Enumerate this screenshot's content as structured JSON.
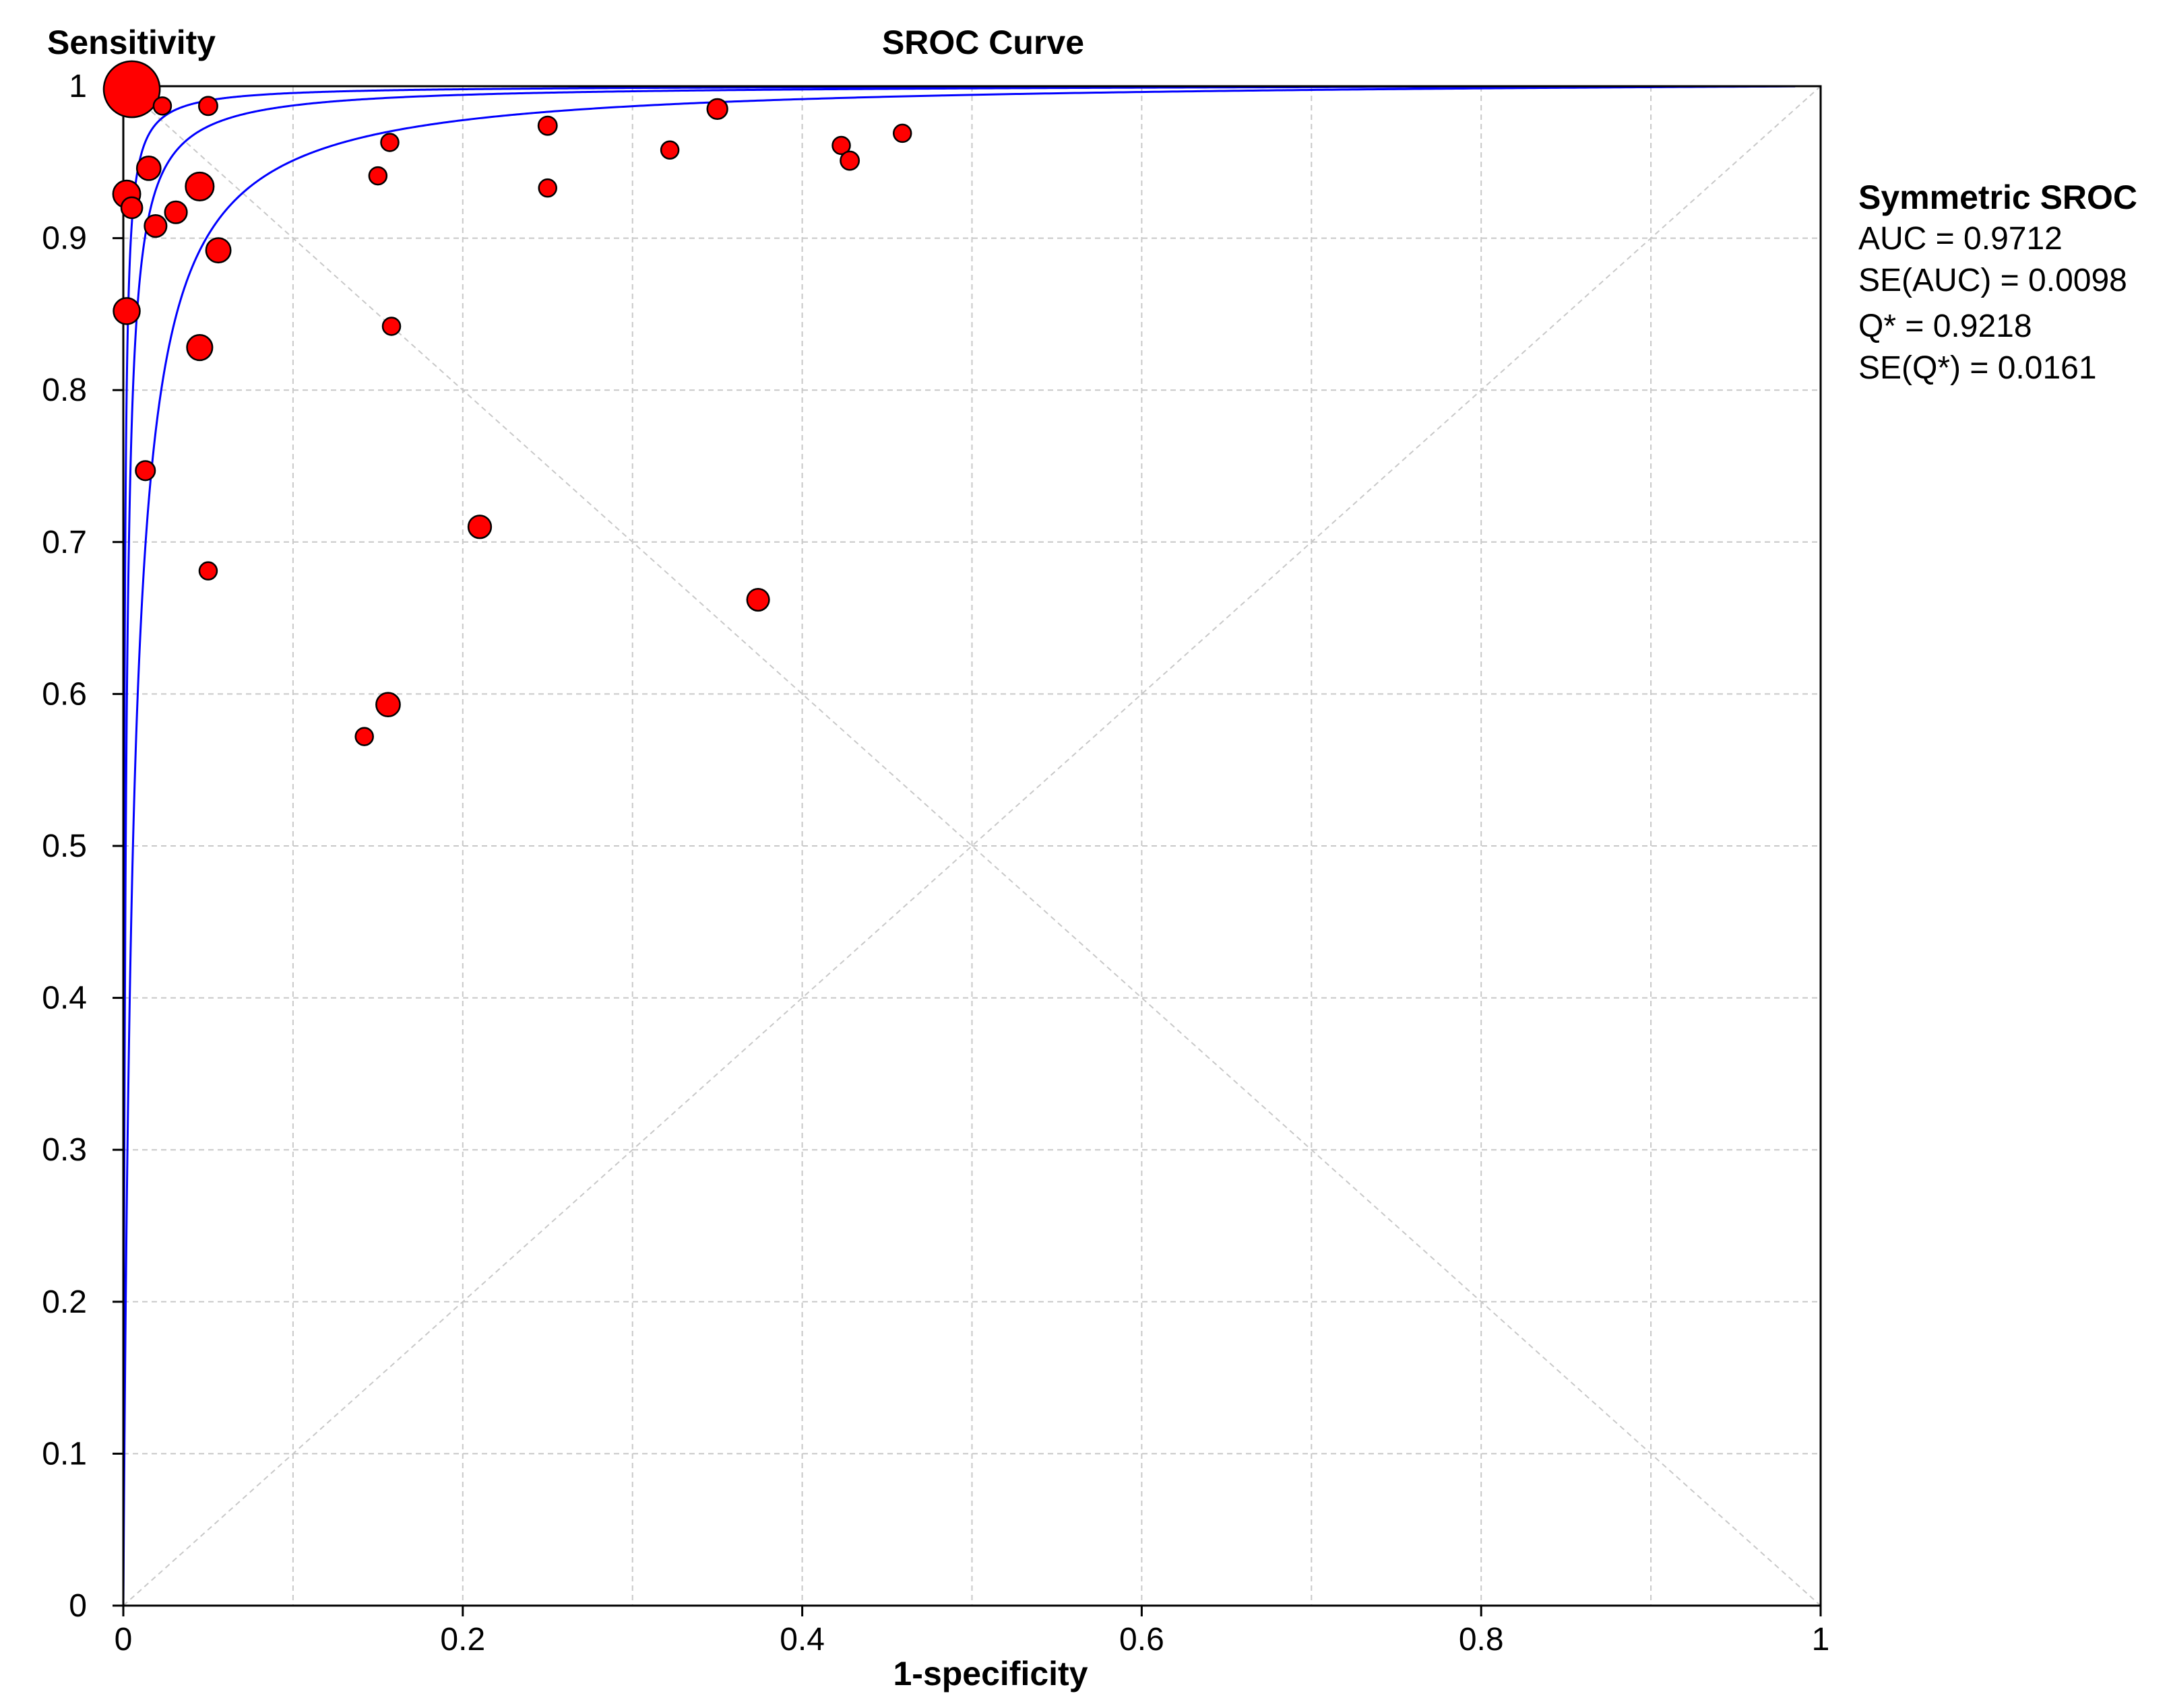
{
  "chart_data": {
    "type": "scatter",
    "title": "SROC Curve",
    "xlabel": "1-specificity",
    "ylabel": "Sensitivity",
    "xlim": [
      0,
      1
    ],
    "ylim": [
      0,
      1
    ],
    "x_ticks": [
      0,
      0.2,
      0.4,
      0.6,
      0.8,
      1
    ],
    "x_tick_labels": [
      "0",
      "0.2",
      "0.4",
      "0.6",
      "0.8",
      "1"
    ],
    "y_ticks": [
      0,
      0.1,
      0.2,
      0.3,
      0.4,
      0.5,
      0.6,
      0.7,
      0.8,
      0.9,
      1
    ],
    "y_tick_labels": [
      "0",
      "0.1",
      "0.2",
      "0.3",
      "0.4",
      "0.5",
      "0.6",
      "0.7",
      "0.8",
      "0.9",
      "1"
    ],
    "grid": true,
    "grid_step": 0.1,
    "diagonals": true,
    "colors": {
      "points": "#ff0000",
      "point_outline": "#000000",
      "curve": "#0000ff",
      "grid": "#c8c8c8",
      "axes": "#000000"
    },
    "curves": [
      {
        "type": "symmetric-sroc",
        "diagnostic_odds_ratio": 2000
      },
      {
        "type": "symmetric-sroc",
        "diagnostic_odds_ratio": 700
      },
      {
        "type": "symmetric-sroc",
        "diagnostic_odds_ratio": 175
      }
    ],
    "points": [
      {
        "x": 0.005,
        "y": 0.998,
        "weight": 3.2
      },
      {
        "x": 0.023,
        "y": 0.987,
        "weight": 1.0
      },
      {
        "x": 0.05,
        "y": 0.987,
        "weight": 1.05
      },
      {
        "x": 0.157,
        "y": 0.963,
        "weight": 1.0
      },
      {
        "x": 0.25,
        "y": 0.974,
        "weight": 1.05
      },
      {
        "x": 0.35,
        "y": 0.985,
        "weight": 1.15
      },
      {
        "x": 0.322,
        "y": 0.958,
        "weight": 1.0
      },
      {
        "x": 0.423,
        "y": 0.961,
        "weight": 1.0
      },
      {
        "x": 0.428,
        "y": 0.951,
        "weight": 1.05
      },
      {
        "x": 0.459,
        "y": 0.969,
        "weight": 1.0
      },
      {
        "x": 0.15,
        "y": 0.941,
        "weight": 1.0
      },
      {
        "x": 0.25,
        "y": 0.933,
        "weight": 1.0
      },
      {
        "x": 0.015,
        "y": 0.946,
        "weight": 1.35
      },
      {
        "x": 0.045,
        "y": 0.934,
        "weight": 1.6
      },
      {
        "x": 0.002,
        "y": 0.929,
        "weight": 1.55
      },
      {
        "x": 0.005,
        "y": 0.92,
        "weight": 1.2
      },
      {
        "x": 0.031,
        "y": 0.917,
        "weight": 1.25
      },
      {
        "x": 0.019,
        "y": 0.908,
        "weight": 1.25
      },
      {
        "x": 0.056,
        "y": 0.892,
        "weight": 1.4
      },
      {
        "x": 0.002,
        "y": 0.852,
        "weight": 1.5
      },
      {
        "x": 0.045,
        "y": 0.828,
        "weight": 1.45
      },
      {
        "x": 0.158,
        "y": 0.842,
        "weight": 1.0
      },
      {
        "x": 0.013,
        "y": 0.747,
        "weight": 1.1
      },
      {
        "x": 0.21,
        "y": 0.71,
        "weight": 1.3
      },
      {
        "x": 0.05,
        "y": 0.681,
        "weight": 1.0
      },
      {
        "x": 0.374,
        "y": 0.662,
        "weight": 1.25
      },
      {
        "x": 0.156,
        "y": 0.593,
        "weight": 1.35
      },
      {
        "x": 0.142,
        "y": 0.572,
        "weight": 1.0
      }
    ],
    "annotation": {
      "heading": "Symmetric SROC",
      "lines": [
        "AUC = 0.9712",
        "SE(AUC) = 0.0098",
        "Q* = 0.9218",
        "SE(Q*) = 0.0161"
      ]
    }
  }
}
